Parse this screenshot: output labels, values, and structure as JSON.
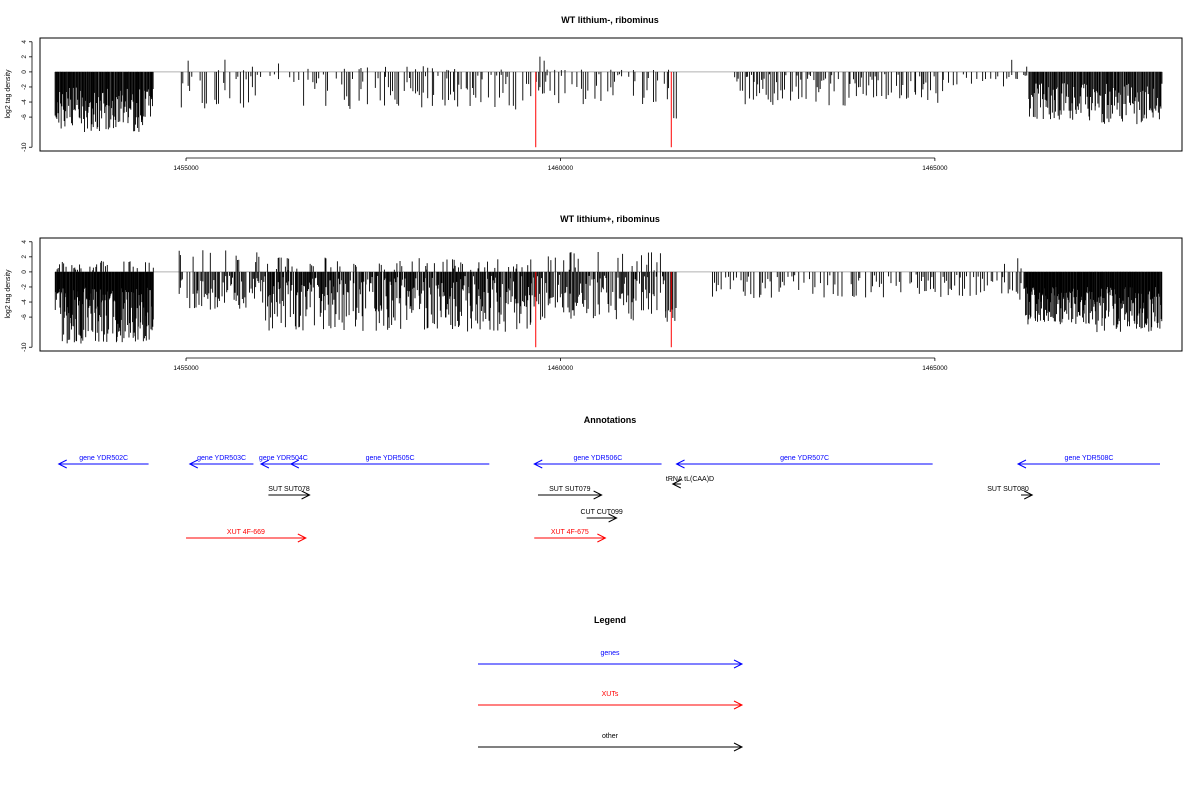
{
  "colors": {
    "genes": "#0000ff",
    "xuts": "#ff0000",
    "other": "#000000",
    "marker": "#ff0000",
    "baseline": "#b0b0b0"
  },
  "chart_data": [
    {
      "type": "bar",
      "title": "WT lithium-, ribominus",
      "ylabel": "log2 tag density",
      "xlim": [
        1453050,
        1468300
      ],
      "ylim": [
        -10.5,
        4.5
      ],
      "yticks": [
        "-10",
        "-6",
        "-4",
        "-2",
        "0",
        "2",
        "4"
      ],
      "ytick_values": [
        -10,
        -6,
        -4,
        -2,
        0,
        2,
        4
      ],
      "xticks": [
        "1455000",
        "1460000",
        "1465000"
      ],
      "xtick_values": [
        1455000,
        1460000,
        1465000
      ],
      "grid": false,
      "markers": [
        1459670,
        1461480
      ],
      "marker_value": -10,
      "segments": [
        {
          "start": 1453250,
          "end": 1454570,
          "step": 10,
          "pos_max": 0,
          "neg_min": 2.0,
          "neg_max": 8.0,
          "density": 1.0
        },
        {
          "start": 1454900,
          "end": 1455920,
          "step": 28,
          "pos_max": 3.8,
          "neg_min": 0.5,
          "neg_max": 5.0,
          "density": 0.7
        },
        {
          "start": 1455920,
          "end": 1456220,
          "step": 60,
          "pos_max": 0.8,
          "neg_min": 0.3,
          "neg_max": 1.5,
          "density": 0.5
        },
        {
          "start": 1456220,
          "end": 1456570,
          "step": 30,
          "pos_max": 1.8,
          "neg_min": 0.5,
          "neg_max": 2.5,
          "density": 0.6
        },
        {
          "start": 1456570,
          "end": 1459620,
          "step": 28,
          "pos_max": 0.8,
          "neg_min": 0.3,
          "neg_max": 5.0,
          "density": 0.75
        },
        {
          "start": 1459620,
          "end": 1459820,
          "step": 25,
          "pos_max": 2.6,
          "neg_min": 0.3,
          "neg_max": 3.0,
          "density": 0.7
        },
        {
          "start": 1459820,
          "end": 1461500,
          "step": 30,
          "pos_max": 0.3,
          "neg_min": 0.3,
          "neg_max": 4.5,
          "density": 0.6
        },
        {
          "start": 1461500,
          "end": 1461580,
          "step": 40,
          "pos_max": 0,
          "neg_min": 3.0,
          "neg_max": 6.5,
          "density": 1.0
        },
        {
          "start": 1462300,
          "end": 1465100,
          "step": 22,
          "pos_max": 0,
          "neg_min": 0.3,
          "neg_max": 4.5,
          "density": 0.8
        },
        {
          "start": 1465100,
          "end": 1466000,
          "step": 35,
          "pos_max": 0,
          "neg_min": 0.3,
          "neg_max": 2.0,
          "density": 0.5
        },
        {
          "start": 1466000,
          "end": 1466250,
          "step": 25,
          "pos_max": 3.8,
          "neg_min": 0.3,
          "neg_max": 1.0,
          "density": 0.5
        },
        {
          "start": 1466250,
          "end": 1467140,
          "step": 12,
          "pos_max": 0,
          "neg_min": 1.5,
          "neg_max": 6.5,
          "density": 1.0
        },
        {
          "start": 1467140,
          "end": 1468030,
          "step": 12,
          "pos_max": 0,
          "neg_min": 1.5,
          "neg_max": 7.0,
          "density": 1.0
        }
      ]
    },
    {
      "type": "bar",
      "title": "WT lithium+, ribominus",
      "ylabel": "log2 tag density",
      "xlim": [
        1453050,
        1468300
      ],
      "ylim": [
        -10.5,
        4.5
      ],
      "yticks": [
        "-10",
        "-6",
        "-4",
        "-2",
        "0",
        "2",
        "4"
      ],
      "ytick_values": [
        -10,
        -6,
        -4,
        -2,
        0,
        2,
        4
      ],
      "xticks": [
        "1455000",
        "1460000",
        "1465000"
      ],
      "xtick_values": [
        1455000,
        1460000,
        1465000
      ],
      "grid": false,
      "markers": [
        1459670,
        1461480
      ],
      "marker_value": -10,
      "segments": [
        {
          "start": 1453250,
          "end": 1454570,
          "step": 8,
          "pos_max": 1.5,
          "neg_min": 2.0,
          "neg_max": 9.5,
          "density": 1.0
        },
        {
          "start": 1454900,
          "end": 1456050,
          "step": 16,
          "pos_max": 2.9,
          "neg_min": 0.5,
          "neg_max": 5.0,
          "density": 0.85
        },
        {
          "start": 1456050,
          "end": 1459620,
          "step": 11,
          "pos_max": 2.0,
          "neg_min": 0.5,
          "neg_max": 8.0,
          "density": 0.9
        },
        {
          "start": 1459620,
          "end": 1461400,
          "step": 14,
          "pos_max": 2.8,
          "neg_min": 0.3,
          "neg_max": 6.5,
          "density": 0.85
        },
        {
          "start": 1461400,
          "end": 1461560,
          "step": 20,
          "pos_max": 0,
          "neg_min": 2.0,
          "neg_max": 7.0,
          "density": 1.0
        },
        {
          "start": 1462000,
          "end": 1465900,
          "step": 24,
          "pos_max": 0,
          "neg_min": 0.3,
          "neg_max": 3.5,
          "density": 0.65
        },
        {
          "start": 1465900,
          "end": 1466200,
          "step": 25,
          "pos_max": 2.0,
          "neg_min": 0.5,
          "neg_max": 4.0,
          "density": 0.7
        },
        {
          "start": 1466200,
          "end": 1467140,
          "step": 8,
          "pos_max": 0,
          "neg_min": 2.0,
          "neg_max": 7.0,
          "density": 1.0
        },
        {
          "start": 1467140,
          "end": 1468030,
          "step": 8,
          "pos_max": 0,
          "neg_min": 2.0,
          "neg_max": 8.0,
          "density": 1.0
        }
      ]
    }
  ],
  "annotations": {
    "title": "Annotations",
    "features": [
      {
        "label": "gene YDR502C",
        "kind": "genes",
        "start": 1454500,
        "end": 1453300,
        "strand": "-",
        "row": 0
      },
      {
        "label": "gene YDR503C",
        "kind": "genes",
        "start": 1455900,
        "end": 1455050,
        "strand": "-",
        "row": 0
      },
      {
        "label": "gene YDR504C",
        "kind": "genes",
        "start": 1456600,
        "end": 1456000,
        "strand": "-",
        "row": 0
      },
      {
        "label": "gene YDR505C",
        "kind": "genes",
        "start": 1459050,
        "end": 1456400,
        "strand": "-",
        "row": 0
      },
      {
        "label": "gene YDR506C",
        "kind": "genes",
        "start": 1461350,
        "end": 1459650,
        "strand": "-",
        "row": 0
      },
      {
        "label": "gene YDR507C",
        "kind": "genes",
        "start": 1464970,
        "end": 1461550,
        "strand": "-",
        "row": 0
      },
      {
        "label": "gene YDR508C",
        "kind": "genes",
        "start": 1469000,
        "end": 1466000,
        "strand": "-",
        "row": 0
      },
      {
        "label": "tRNA tL(CAA)D",
        "kind": "other",
        "start": 1461610,
        "end": 1461500,
        "strand": "-",
        "row": 0.5
      },
      {
        "label": "SUT SUT078",
        "kind": "other",
        "start": 1456100,
        "end": 1456650,
        "strand": "+",
        "row": 1
      },
      {
        "label": "SUT SUT079",
        "kind": "other",
        "start": 1459700,
        "end": 1460550,
        "strand": "+",
        "row": 1
      },
      {
        "label": "SUT SUT080",
        "kind": "other",
        "start": 1466150,
        "end": 1466300,
        "strand": "+",
        "row": 1
      },
      {
        "label": "CUT CUT099",
        "kind": "other",
        "start": 1460350,
        "end": 1460750,
        "strand": "+",
        "row": 2
      },
      {
        "label": "XUT 4F-669",
        "kind": "xuts",
        "start": 1455000,
        "end": 1456600,
        "strand": "+",
        "row": 3
      },
      {
        "label": "XUT 4F-675",
        "kind": "xuts",
        "start": 1459650,
        "end": 1460600,
        "strand": "+",
        "row": 3
      }
    ]
  },
  "legend": {
    "title": "Legend",
    "items": [
      {
        "label": "genes",
        "kind": "genes"
      },
      {
        "label": "XUTs",
        "kind": "xuts"
      },
      {
        "label": "other",
        "kind": "other"
      }
    ]
  }
}
